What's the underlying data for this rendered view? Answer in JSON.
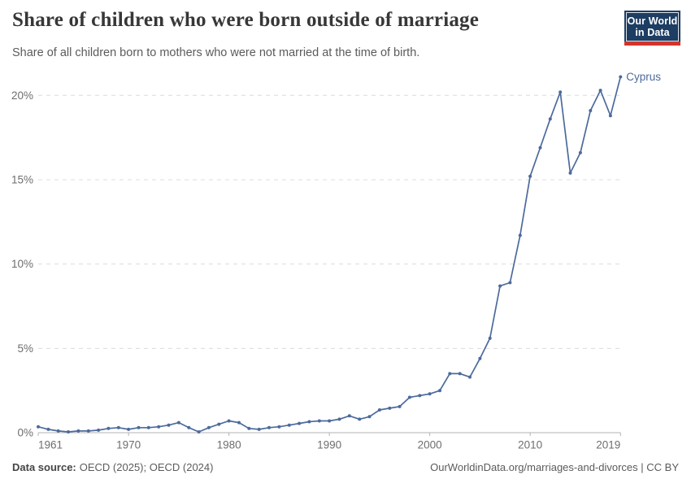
{
  "header": {
    "title": "Share of children who were born outside of marriage",
    "subtitle": "Share of all children born to mothers who were not married at the time of birth."
  },
  "logo": {
    "line1": "Our World",
    "line2": "in Data",
    "bg_color": "#1d3d63",
    "bar_color": "#d2352c"
  },
  "chart_data": {
    "type": "line",
    "title": "Share of children who were born outside of marriage",
    "xlabel": "",
    "ylabel": "",
    "xlim": [
      1961,
      2019
    ],
    "ylim": [
      0,
      21.5
    ],
    "grid": "horizontal dashed",
    "legend": "direct entity label at line end",
    "yticks": [
      {
        "value": 0,
        "label": "0%"
      },
      {
        "value": 5,
        "label": "5%"
      },
      {
        "value": 10,
        "label": "10%"
      },
      {
        "value": 15,
        "label": "15%"
      },
      {
        "value": 20,
        "label": "20%"
      }
    ],
    "xticks": [
      {
        "year": 1961,
        "label": "1961",
        "align": "start"
      },
      {
        "year": 1970,
        "label": "1970",
        "align": "middle"
      },
      {
        "year": 1980,
        "label": "1980",
        "align": "middle"
      },
      {
        "year": 1990,
        "label": "1990",
        "align": "middle"
      },
      {
        "year": 2000,
        "label": "2000",
        "align": "middle"
      },
      {
        "year": 2010,
        "label": "2010",
        "align": "middle"
      },
      {
        "year": 2019,
        "label": "2019",
        "align": "end"
      }
    ],
    "series": [
      {
        "name": "Cyprus",
        "color": "#4C6A9C",
        "years": [
          1961,
          1962,
          1963,
          1964,
          1965,
          1966,
          1967,
          1968,
          1969,
          1970,
          1971,
          1972,
          1973,
          1974,
          1975,
          1976,
          1977,
          1978,
          1979,
          1980,
          1981,
          1982,
          1983,
          1984,
          1985,
          1986,
          1987,
          1988,
          1989,
          1990,
          1991,
          1992,
          1993,
          1994,
          1995,
          1996,
          1997,
          1998,
          1999,
          2000,
          2001,
          2002,
          2003,
          2004,
          2005,
          2006,
          2007,
          2008,
          2009,
          2010,
          2011,
          2012,
          2013,
          2014,
          2015,
          2016,
          2017,
          2018,
          2019
        ],
        "values": [
          0.35,
          0.2,
          0.1,
          0.05,
          0.1,
          0.1,
          0.15,
          0.25,
          0.3,
          0.2,
          0.3,
          0.3,
          0.35,
          0.45,
          0.6,
          0.3,
          0.05,
          0.3,
          0.5,
          0.7,
          0.6,
          0.25,
          0.2,
          0.3,
          0.35,
          0.45,
          0.55,
          0.65,
          0.7,
          0.7,
          0.8,
          1.0,
          0.8,
          0.95,
          1.35,
          1.45,
          1.55,
          2.1,
          2.2,
          2.3,
          2.5,
          3.5,
          3.5,
          3.3,
          4.4,
          5.6,
          8.7,
          8.9,
          11.7,
          15.2,
          16.9,
          18.6,
          20.2,
          15.4,
          16.6,
          19.1,
          20.3,
          18.8,
          21.1
        ]
      }
    ]
  },
  "footer": {
    "datasource_label": "Data source:",
    "datasource_value": "OECD (2025); OECD (2024)",
    "credit": "OurWorldinData.org/marriages-and-divorces | CC BY"
  }
}
